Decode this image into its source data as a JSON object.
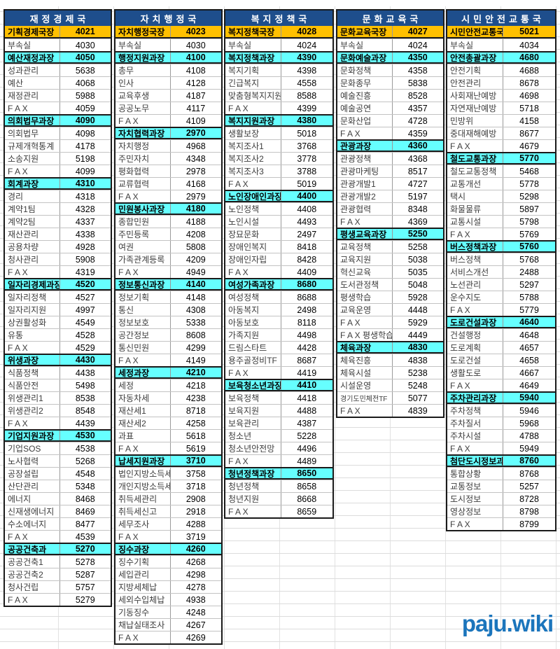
{
  "logo": {
    "text": "paju.wiki"
  },
  "colors": {
    "header_blue": "#1E4E8C",
    "director_orange": "#FFC000",
    "section_cyan": "#66FFFF",
    "section_border": "#1a1a1a",
    "logo_blue": "#1B75BC"
  },
  "columns": [
    {
      "title": "재정경제국",
      "rows": [
        [
          "기획경제국장",
          "4021",
          "d"
        ],
        [
          "부속실",
          "4030"
        ],
        [
          "예산재정과장",
          "4050",
          "s"
        ],
        [
          "성과관리",
          "5638"
        ],
        [
          "예산",
          "4068"
        ],
        [
          "재정관리",
          "5988"
        ],
        [
          "F A X",
          "4059"
        ],
        [
          "의회법무과장",
          "4090",
          "s"
        ],
        [
          "의회법무",
          "4098"
        ],
        [
          "규제개혁통계",
          "4178"
        ],
        [
          "소송지원",
          "5198"
        ],
        [
          "F A X",
          "4099"
        ],
        [
          "회계과장",
          "4310",
          "s"
        ],
        [
          "경리",
          "4318"
        ],
        [
          "계약1팀",
          "4328"
        ],
        [
          "계약2팀",
          "4337"
        ],
        [
          "재산관리",
          "4338"
        ],
        [
          "공용차량",
          "4928"
        ],
        [
          "청사관리",
          "5908"
        ],
        [
          "F A X",
          "4319"
        ],
        [
          "일자리경제과장",
          "4520",
          "s"
        ],
        [
          "일자리정책",
          "4527"
        ],
        [
          "일자리지원",
          "4997"
        ],
        [
          "상권활성화",
          "4549"
        ],
        [
          "유통",
          "4528"
        ],
        [
          "F A X",
          "4529"
        ],
        [
          "위생과장",
          "4430",
          "s"
        ],
        [
          "식품정책",
          "4438"
        ],
        [
          "식품안전",
          "5498"
        ],
        [
          "위생관리1",
          "8538"
        ],
        [
          "위생관리2",
          "8548"
        ],
        [
          "F A X",
          "4439"
        ],
        [
          "기업지원과장",
          "4530",
          "s"
        ],
        [
          "기업SOS",
          "4538"
        ],
        [
          "노사협력",
          "5268"
        ],
        [
          "공장설립",
          "4548"
        ],
        [
          "산단관리",
          "5348"
        ],
        [
          "에너지",
          "8468"
        ],
        [
          "신재생에너지",
          "8469"
        ],
        [
          "수소에너지",
          "8477"
        ],
        [
          "F A X",
          "4539"
        ],
        [
          "공공건축과",
          "5270",
          "s"
        ],
        [
          "공공건축1",
          "5278"
        ],
        [
          "공공건축2",
          "5287"
        ],
        [
          "청사건립",
          "5757"
        ],
        [
          "F A X",
          "5279"
        ]
      ]
    },
    {
      "title": "자치행정국",
      "rows": [
        [
          "자치행정국장",
          "4023",
          "d"
        ],
        [
          "부속실",
          "4030"
        ],
        [
          "행정지원과장",
          "4100",
          "s"
        ],
        [
          "총무",
          "4108"
        ],
        [
          "인사",
          "4128"
        ],
        [
          "교육후생",
          "4187"
        ],
        [
          "공공노무",
          "4117"
        ],
        [
          "F A X",
          "4109"
        ],
        [
          "자치협력과장",
          "2970",
          "s"
        ],
        [
          "자치행정",
          "4968"
        ],
        [
          "주민자치",
          "4348"
        ],
        [
          "평화협력",
          "2978"
        ],
        [
          "교류협력",
          "4168"
        ],
        [
          "F A X",
          "2979"
        ],
        [
          "민원봉사과장",
          "4180",
          "s"
        ],
        [
          "종합민원",
          "4188"
        ],
        [
          "주민등록",
          "4208"
        ],
        [
          "여권",
          "5808"
        ],
        [
          "가족관계등록",
          "4209"
        ],
        [
          "F A X",
          "4949"
        ],
        [
          "정보통신과장",
          "4140",
          "s"
        ],
        [
          "정보기획",
          "4148"
        ],
        [
          "통신",
          "4308"
        ],
        [
          "정보보호",
          "5338"
        ],
        [
          "공간정보",
          "8608"
        ],
        [
          "통신민원",
          "4299"
        ],
        [
          "F A X",
          "4149"
        ],
        [
          "세정과장",
          "4210",
          "s"
        ],
        [
          "세정",
          "4218"
        ],
        [
          "자동차세",
          "4238"
        ],
        [
          "재산세1",
          "8718"
        ],
        [
          "재산세2",
          "4258"
        ],
        [
          "과표",
          "5618"
        ],
        [
          "F A X",
          "5619"
        ],
        [
          "납세지원과장",
          "3710",
          "s"
        ],
        [
          "법인지방소득세",
          "3758"
        ],
        [
          "개인지방소득세",
          "3718"
        ],
        [
          "취득세관리",
          "2908"
        ],
        [
          "취득세신고",
          "2918"
        ],
        [
          "세무조사",
          "4288"
        ],
        [
          "F A X",
          "3719"
        ],
        [
          "징수과장",
          "4260",
          "s"
        ],
        [
          "징수기획",
          "4268"
        ],
        [
          "세입관리",
          "4298"
        ],
        [
          "지방세체납",
          "4278"
        ],
        [
          "세외수입체납",
          "4938"
        ],
        [
          "기동징수",
          "4248"
        ],
        [
          "채납실태조사",
          "4267"
        ],
        [
          "F A X",
          "4269"
        ]
      ]
    },
    {
      "title": "복지정책국",
      "rows": [
        [
          "복지정책국장",
          "4028",
          "d"
        ],
        [
          "부속실",
          "4024"
        ],
        [
          "복지정책과장",
          "4390",
          "s"
        ],
        [
          "복지기획",
          "4398"
        ],
        [
          "긴급복지",
          "4558"
        ],
        [
          "맞춤형복지지원",
          "8588"
        ],
        [
          "F A X",
          "4399"
        ],
        [
          "복지지원과장",
          "4380",
          "s"
        ],
        [
          "생활보장",
          "5018"
        ],
        [
          "복지조사1",
          "3768"
        ],
        [
          "복지조사2",
          "3778"
        ],
        [
          "복지조사3",
          "3788"
        ],
        [
          "F A X",
          "5019"
        ],
        [
          "노인장애인과장",
          "4400",
          "s"
        ],
        [
          "노인정책",
          "4408"
        ],
        [
          "노인시설",
          "4493"
        ],
        [
          "장묘문화",
          "2497"
        ],
        [
          "장애인복지",
          "8418"
        ],
        [
          "장애인자립",
          "8428"
        ],
        [
          "F A X",
          "4409"
        ],
        [
          "여성가족과장",
          "8680",
          "s"
        ],
        [
          "여성정책",
          "8688"
        ],
        [
          "아동복지",
          "2498"
        ],
        [
          "아동보호",
          "8118"
        ],
        [
          "가족지원",
          "4498"
        ],
        [
          "드림스타트",
          "4428"
        ],
        [
          "용주골정비TF",
          "8687"
        ],
        [
          "F A X",
          "4419"
        ],
        [
          "보육청소년과장",
          "4410",
          "s"
        ],
        [
          "보육정책",
          "4418"
        ],
        [
          "보육지원",
          "4488"
        ],
        [
          "보육관리",
          "4387"
        ],
        [
          "청소년",
          "5228"
        ],
        [
          "청소년안전망",
          "4496"
        ],
        [
          "F A X",
          "4489"
        ],
        [
          "청년정책과장",
          "8650",
          "s"
        ],
        [
          "청년정책",
          "8658"
        ],
        [
          "청년지원",
          "8668"
        ],
        [
          "F A X",
          "8659"
        ]
      ]
    },
    {
      "title": "문화교육국",
      "rows": [
        [
          "문화교육국장",
          "4027",
          "d"
        ],
        [
          "부속실",
          "4024"
        ],
        [
          "문화예술과장",
          "4350",
          "s"
        ],
        [
          "문화정책",
          "4358"
        ],
        [
          "문화종무",
          "5838"
        ],
        [
          "예술진흥",
          "8528"
        ],
        [
          "예술공연",
          "4357"
        ],
        [
          "문화산업",
          "4728"
        ],
        [
          "F A X",
          "4359"
        ],
        [
          "관광과장",
          "4360",
          "s"
        ],
        [
          "관광정책",
          "4368"
        ],
        [
          "관광마케팅",
          "8517"
        ],
        [
          "관광개발1",
          "4727"
        ],
        [
          "관광개발2",
          "5197"
        ],
        [
          "관광협력",
          "8348"
        ],
        [
          "F A X",
          "4369"
        ],
        [
          "평생교육과장",
          "5250",
          "s"
        ],
        [
          "교육정책",
          "5258"
        ],
        [
          "교육지원",
          "5038"
        ],
        [
          "혁신교육",
          "5035"
        ],
        [
          "도서관정책",
          "5048"
        ],
        [
          "평생학습",
          "5928"
        ],
        [
          "교육운영",
          "4448"
        ],
        [
          "F A X",
          "5929"
        ],
        [
          "F A X 평생학습",
          "4449"
        ],
        [
          "체육과장",
          "4830",
          "s"
        ],
        [
          "체육진흥",
          "4838"
        ],
        [
          "체육시설",
          "5238"
        ],
        [
          "시설운영",
          "5248"
        ],
        [
          "경기도민체전TF",
          "5077",
          "sm"
        ],
        [
          "F A X",
          "4839"
        ]
      ]
    },
    {
      "title": "시민안전교통국",
      "rows": [
        [
          "시민안전교통국장",
          "5021",
          "d"
        ],
        [
          "부속실",
          "4034"
        ],
        [
          "안전총괄과장",
          "4680",
          "s"
        ],
        [
          "안전기획",
          "4688"
        ],
        [
          "안전관리",
          "8678"
        ],
        [
          "사회재난예방",
          "4698"
        ],
        [
          "자연재난예방",
          "5718"
        ],
        [
          "민방위",
          "4158"
        ],
        [
          "중대재해예방",
          "8677"
        ],
        [
          "F A X",
          "4679"
        ],
        [
          "철도교통과장",
          "5770",
          "s"
        ],
        [
          "철도교통정책",
          "5468"
        ],
        [
          "교통개선",
          "5778"
        ],
        [
          "택시",
          "5298"
        ],
        [
          "화물물류",
          "5897"
        ],
        [
          "교통시설",
          "5798"
        ],
        [
          "F A X",
          "5769"
        ],
        [
          "버스정책과장",
          "5760",
          "s"
        ],
        [
          "버스정책",
          "5768"
        ],
        [
          "서비스개선",
          "2488"
        ],
        [
          "노선관리",
          "5297"
        ],
        [
          "운수지도",
          "5788"
        ],
        [
          "F A X",
          "5779"
        ],
        [
          "도로건설과장",
          "4640",
          "s"
        ],
        [
          "건설행정",
          "4648"
        ],
        [
          "도로계획",
          "4657"
        ],
        [
          "도로건설",
          "4658"
        ],
        [
          "생활도로",
          "4667"
        ],
        [
          "F A X",
          "4649"
        ],
        [
          "주차관리과장",
          "5940",
          "s"
        ],
        [
          "주차정책",
          "5946"
        ],
        [
          "주차질서",
          "5968"
        ],
        [
          "주차시설",
          "4788"
        ],
        [
          "F A X",
          "5949"
        ],
        [
          "첨단도시정보과장",
          "8760",
          "s"
        ],
        [
          "통합상황",
          "8768"
        ],
        [
          "교통정보",
          "5257"
        ],
        [
          "도시정보",
          "8728"
        ],
        [
          "영상정보",
          "8798"
        ],
        [
          "F A X",
          "8799"
        ]
      ]
    }
  ]
}
